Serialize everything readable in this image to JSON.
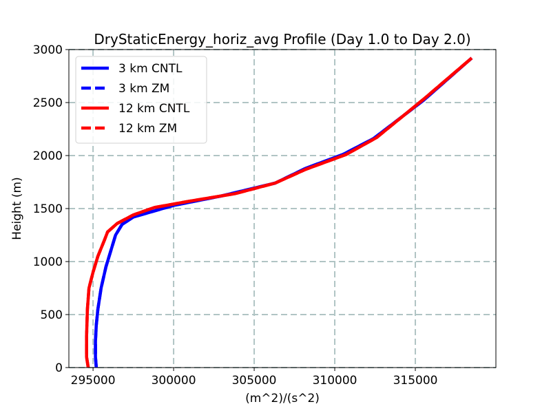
{
  "chart_data": {
    "type": "line",
    "title": "DryStaticEnergy_horiz_avg Profile (Day 1.0 to Day 2.0)",
    "xlabel": "(m^2)/(s^2)",
    "ylabel": "Height (m)",
    "xlim": [
      293500,
      320000
    ],
    "ylim": [
      0,
      3000
    ],
    "xticks": [
      295000,
      300000,
      305000,
      310000,
      315000
    ],
    "yticks": [
      0,
      500,
      1000,
      1500,
      2000,
      2500,
      3000
    ],
    "grid": true,
    "legend_position": "top-left",
    "series": [
      {
        "name": "3 km CNTL",
        "color": "#0000ff",
        "linestyle": "solid",
        "points": [
          [
            295200,
            0
          ],
          [
            295150,
            100
          ],
          [
            295150,
            250
          ],
          [
            295200,
            400
          ],
          [
            295300,
            550
          ],
          [
            295500,
            750
          ],
          [
            295800,
            950
          ],
          [
            296100,
            1100
          ],
          [
            296400,
            1250
          ],
          [
            296800,
            1350
          ],
          [
            297500,
            1420
          ],
          [
            300000,
            1530
          ],
          [
            303000,
            1620
          ],
          [
            306300,
            1740
          ],
          [
            308200,
            1880
          ],
          [
            310500,
            2010
          ],
          [
            312400,
            2160
          ],
          [
            315500,
            2520
          ],
          [
            318500,
            2920
          ]
        ]
      },
      {
        "name": "3 km ZM",
        "color": "#0000ff",
        "linestyle": "dashed",
        "points": [
          [
            295200,
            0
          ],
          [
            295150,
            100
          ],
          [
            295150,
            250
          ],
          [
            295200,
            400
          ],
          [
            295300,
            550
          ],
          [
            295500,
            750
          ],
          [
            295800,
            950
          ],
          [
            296100,
            1100
          ],
          [
            296400,
            1250
          ],
          [
            296800,
            1350
          ],
          [
            297500,
            1420
          ],
          [
            300000,
            1530
          ],
          [
            303000,
            1620
          ],
          [
            306300,
            1740
          ],
          [
            308200,
            1880
          ],
          [
            310500,
            2010
          ],
          [
            312400,
            2160
          ],
          [
            315500,
            2520
          ],
          [
            318500,
            2920
          ]
        ]
      },
      {
        "name": "12 km CNTL",
        "color": "#ff0000",
        "linestyle": "solid",
        "points": [
          [
            294700,
            0
          ],
          [
            294600,
            100
          ],
          [
            294600,
            300
          ],
          [
            294650,
            550
          ],
          [
            294750,
            750
          ],
          [
            295000,
            900
          ],
          [
            295300,
            1050
          ],
          [
            295700,
            1200
          ],
          [
            295900,
            1280
          ],
          [
            296500,
            1360
          ],
          [
            297500,
            1440
          ],
          [
            298800,
            1510
          ],
          [
            301000,
            1570
          ],
          [
            303800,
            1640
          ],
          [
            306300,
            1740
          ],
          [
            308200,
            1870
          ],
          [
            310700,
            2010
          ],
          [
            312600,
            2170
          ],
          [
            315500,
            2530
          ],
          [
            318500,
            2920
          ]
        ]
      },
      {
        "name": "12 km ZM",
        "color": "#ff0000",
        "linestyle": "dashed",
        "points": [
          [
            294700,
            0
          ],
          [
            294600,
            100
          ],
          [
            294600,
            300
          ],
          [
            294650,
            550
          ],
          [
            294750,
            750
          ],
          [
            295000,
            900
          ],
          [
            295300,
            1050
          ],
          [
            295700,
            1200
          ],
          [
            295900,
            1280
          ],
          [
            296500,
            1360
          ],
          [
            297500,
            1440
          ],
          [
            298800,
            1510
          ],
          [
            301000,
            1570
          ],
          [
            303800,
            1640
          ],
          [
            306300,
            1740
          ],
          [
            308200,
            1870
          ],
          [
            310700,
            2010
          ],
          [
            312600,
            2170
          ],
          [
            315500,
            2530
          ],
          [
            318500,
            2920
          ]
        ]
      }
    ]
  }
}
